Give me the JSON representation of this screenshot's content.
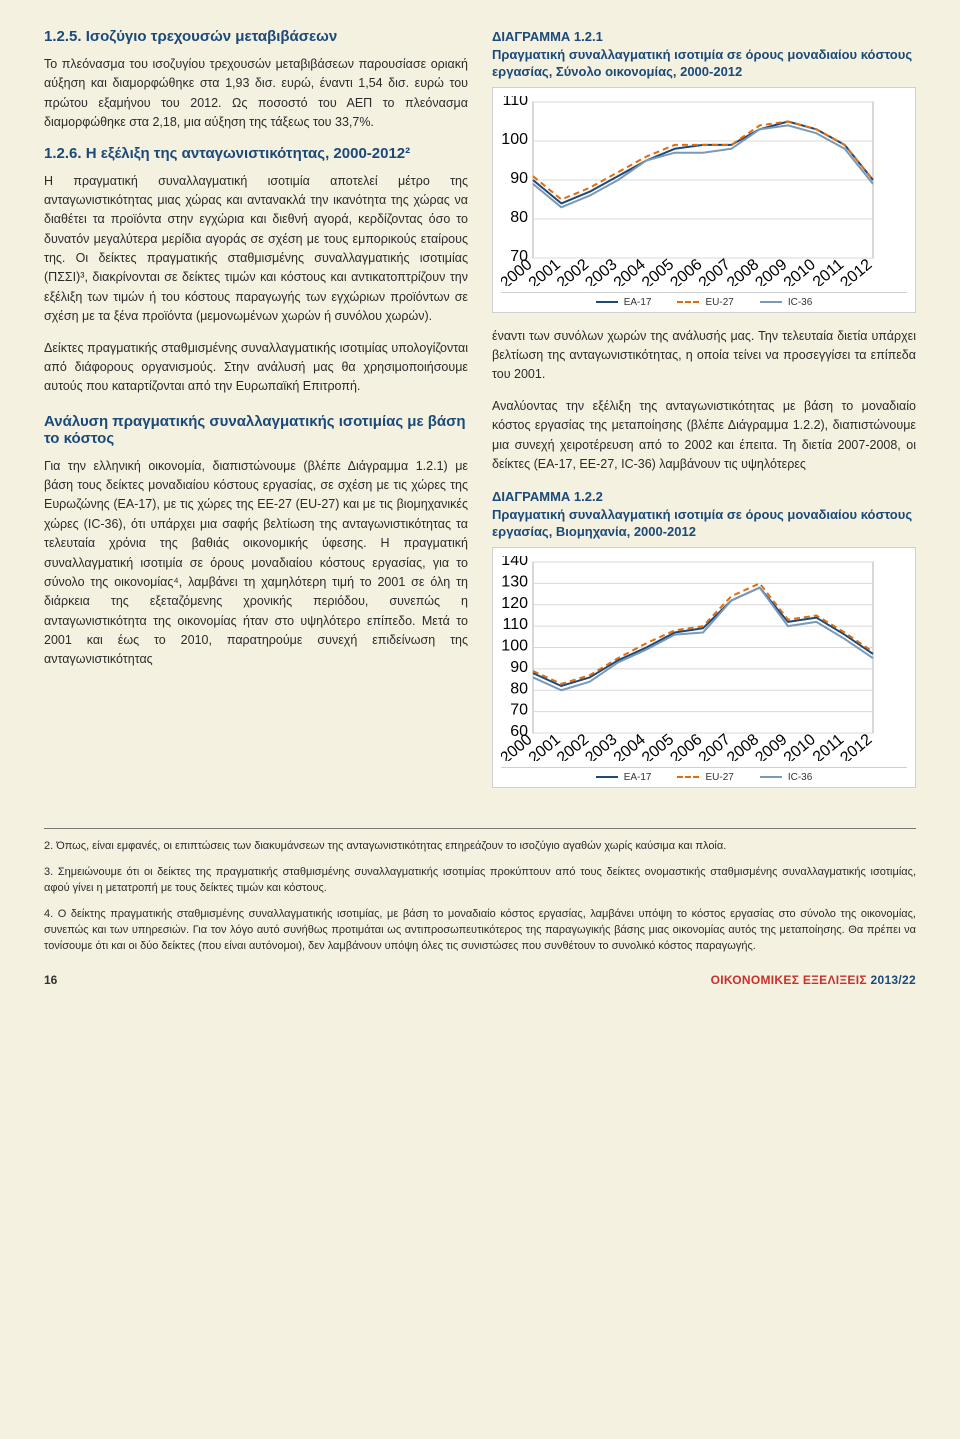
{
  "left": {
    "sec125_title": "1.2.5. Ισοζύγιο τρεχουσών μεταβιβάσεων",
    "p1": "Το πλεόνασμα του ισοζυγίου τρεχουσών μεταβιβάσεων παρουσίασε οριακή αύξηση και διαμορφώθηκε στα 1,93 δισ. ευρώ, έναντι 1,54 δισ. ευρώ του πρώτου εξαμήνου του 2012. Ως ποσοστό του ΑΕΠ το πλεόνασμα διαμορφώθηκε στα 2,18, μια αύξηση της τάξεως του 33,7%.",
    "sec126_title": "1.2.6. Η εξέλιξη της ανταγωνιστικότητας, 2000-2012²",
    "p2": "Η πραγματική συναλλαγματική ισοτιμία αποτελεί μέτρο της ανταγωνιστικότητας μιας χώρας και αντανακλά την ικανότητα της χώρας να διαθέτει τα προϊόντα στην εγχώρια και διεθνή αγορά, κερδίζοντας όσο το δυνατόν μεγαλύτερα μερίδια αγοράς σε σχέση με τους εμπορικούς εταίρους της. Οι δείκτες πραγματικής σταθμισμένης συναλλαγματικής ισοτιμίας (ΠΣΣΙ)³, διακρίνονται σε δείκτες τιμών και κόστους και αντικατοπτρίζουν την εξέλιξη των τιμών ή του κόστους παραγωγής των εγχώριων προϊόντων σε σχέση με τα ξένα προϊόντα (μεμονωμένων χωρών ή συνόλου χωρών).",
    "p3": "Δείκτες πραγματικής σταθμισμένης συναλλαγματικής ισοτιμίας υπολογίζονται από διάφορους οργανισμούς. Στην ανάλυσή μας θα χρησιμοποιήσουμε αυτούς που καταρτίζονται από την Ευρωπαϊκή Επιτροπή.",
    "sub_title": "Ανάλυση πραγματικής συναλλαγματικής ισοτιμίας με βάση το κόστος",
    "p4": "Για την ελληνική οικονομία, διαπιστώνουμε (βλέπε Διάγραμμα 1.2.1) με βάση τους δείκτες μοναδιαίου κόστους εργασίας, σε σχέση με τις χώρες της Ευρωζώνης (EA-17), με τις χώρες της ΕΕ-27 (EU-27) και με τις βιομηχανικές χώρες (IC-36), ότι υπάρχει μια σαφής βελτίωση της ανταγωνιστικότητας τα τελευταία χρόνια της βαθιάς οικονομικής ύφεσης. Η πραγματική συναλλαγματική ισοτιμία σε όρους μοναδιαίου κόστους εργασίας, για το σύνολο της οικονομίας⁴, λαμβάνει τη χαμηλότερη τιμή το 2001 σε όλη τη διάρκεια της εξεταζόμενης χρονικής περιόδου, συνεπώς η ανταγωνιστικότητα της οικονομίας ήταν στο υψηλότερο επίπεδο. Μετά το 2001 και έως το 2010, παρατηρούμε συνεχή επιδείνωση της ανταγωνιστικότητας"
  },
  "right": {
    "p5": "έναντι των συνόλων χωρών της ανάλυσής μας. Την τελευταία διετία υπάρχει βελτίωση της ανταγωνιστικότητας, η οποία τείνει να προσεγγίσει τα επίπεδα του 2001.",
    "p6": "Αναλύοντας την εξέλιξη της ανταγωνιστικότητας με βάση το μοναδιαίο κόστος εργασίας της μεταποίησης (βλέπε Διάγραμμα 1.2.2), διαπιστώνουμε μια συνεχή χειροτέρευση από το 2002 και έπειτα. Τη διετία 2007-2008, οι δείκτες (EA-17, EE-27, IC-36) λαμβάνουν τις υψηλότερες"
  },
  "chart1": {
    "title_l1": "ΔΙΑΓΡΑΜΜΑ 1.2.1",
    "title_l2": "Πραγματική συναλλαγματική ισοτιμία σε όρους μοναδιαίου κόστους εργασίας, Σύνολο οικονομίας, 2000-2012",
    "ylim": [
      70,
      110
    ],
    "ytick_step": 10,
    "years": [
      "2000",
      "2001",
      "2002",
      "2003",
      "2004",
      "2005",
      "2006",
      "2007",
      "2008",
      "2009",
      "2010",
      "2011",
      "2012"
    ],
    "series": [
      {
        "name": "EA-17",
        "label": "EA-17",
        "color": "#1a4a7a",
        "dash": false,
        "values": [
          90,
          84,
          87,
          91,
          95,
          98,
          99,
          99,
          103,
          105,
          103,
          99,
          90
        ]
      },
      {
        "name": "EU-27",
        "label": "EU-27",
        "color": "#e36c09",
        "dash": true,
        "values": [
          91,
          85,
          88,
          92,
          96,
          99,
          99,
          99,
          104,
          105,
          103,
          99,
          90
        ]
      },
      {
        "name": "IC-36",
        "label": "IC-36",
        "color": "#7a98b8",
        "dash": false,
        "values": [
          89,
          83,
          86,
          90,
          95,
          97,
          97,
          98,
          103,
          104,
          102,
          98,
          89
        ]
      }
    ],
    "background_color": "#ffffff",
    "grid_color": "#d8d8d8",
    "line_width": 2
  },
  "chart2": {
    "title_l1": "ΔΙΑΓΡΑΜΜΑ 1.2.2",
    "title_l2": "Πραγματική συναλλαγματική ισοτιμία σε όρους μοναδιαίου κόστους εργασίας, Βιομηχανία, 2000-2012",
    "ylim": [
      60,
      140
    ],
    "ytick_step": 10,
    "years": [
      "2000",
      "2001",
      "2002",
      "2003",
      "2004",
      "2005",
      "2006",
      "2007",
      "2008",
      "2009",
      "2010",
      "2011",
      "2012"
    ],
    "series": [
      {
        "name": "EA-17",
        "label": "EA-17",
        "color": "#1a4a7a",
        "dash": false,
        "values": [
          88,
          82,
          86,
          94,
          100,
          107,
          109,
          122,
          128,
          112,
          114,
          106,
          97
        ]
      },
      {
        "name": "EU-27",
        "label": "EU-27",
        "color": "#e36c09",
        "dash": true,
        "values": [
          89,
          83,
          87,
          95,
          102,
          108,
          110,
          124,
          130,
          113,
          115,
          107,
          98
        ]
      },
      {
        "name": "IC-36",
        "label": "IC-36",
        "color": "#7a98b8",
        "dash": false,
        "values": [
          86,
          80,
          84,
          93,
          99,
          106,
          107,
          122,
          128,
          110,
          112,
          104,
          95
        ]
      }
    ],
    "background_color": "#ffffff",
    "grid_color": "#d8d8d8",
    "line_width": 2
  },
  "footnotes": {
    "n2": "2. Όπως, είναι εμφανές, οι επιπτώσεις των διακυμάνσεων της ανταγωνιστικότητας επηρεάζουν το ισοζύγιο αγαθών χωρίς καύσιμα και πλοία.",
    "n3": "3. Σημειώνουμε ότι οι δείκτες της πραγματικής σταθμισμένης συναλλαγματικής ισοτιμίας προκύπτουν από τους δείκτες ονομαστικής σταθμισμένης συναλλαγματικής ισοτιμίας, αφού γίνει η μετατροπή με τους δείκτες τιμών και κόστους.",
    "n4": "4. Ο δείκτης πραγματικής σταθμισμένης συναλλαγματικής ισοτιμίας, με βάση το μοναδιαίο κόστος εργασίας, λαμβάνει υπόψη το κόστος εργασίας στο σύνολο της οικονομίας, συνεπώς και των υπηρεσιών. Για τον λόγο αυτό συνήθως προτιμάται ως αντιπροσωπευτικότερος της παραγωγικής βάσης μιας οικονομίας αυτός της μεταποίησης. Θα πρέπει να τονίσουμε ότι και οι δύο δείκτες (που είναι αυτόνομοι), δεν λαμβάνουν υπόψη όλες τις συνιστώσες που συνθέτουν το συνολικό κόστος παραγωγής."
  },
  "footer": {
    "page": "16",
    "pub": "ΟΙΚΟΝΟΜΙΚΕΣ ΕΞΕΛΙΞΕΙΣ",
    "year": "2013/22"
  }
}
